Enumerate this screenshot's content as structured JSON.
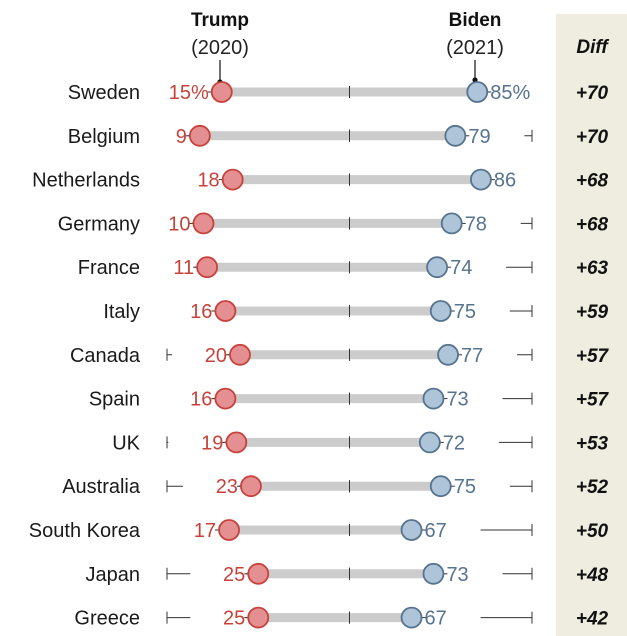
{
  "header": {
    "trump_name": "Trump",
    "trump_year": "(2020)",
    "biden_name": "Biden",
    "biden_year": "(2021)",
    "diff_label": "Diff"
  },
  "colors": {
    "trump": "#e48f91",
    "trump_stroke": "#c8423b",
    "biden": "#aec4d8",
    "biden_stroke": "#56738f",
    "bar": "#cccccc",
    "diff_panel": "#eeede0"
  },
  "chart_data": {
    "type": "dumbbell",
    "xlim": [
      0,
      100
    ],
    "series": [
      {
        "name": "Trump (2020)",
        "values": [
          15,
          9,
          18,
          10,
          11,
          16,
          20,
          16,
          19,
          23,
          17,
          25,
          25
        ]
      },
      {
        "name": "Biden (2021)",
        "values": [
          85,
          79,
          86,
          78,
          74,
          75,
          77,
          73,
          72,
          75,
          67,
          73,
          67
        ]
      }
    ],
    "rows": [
      {
        "country": "Sweden",
        "trump": 15,
        "biden": 85,
        "trump_label": "15%",
        "biden_label": "85%",
        "diff": "+70"
      },
      {
        "country": "Belgium",
        "trump": 9,
        "biden": 79,
        "trump_label": "9",
        "biden_label": "79",
        "diff": "+70"
      },
      {
        "country": "Netherlands",
        "trump": 18,
        "biden": 86,
        "trump_label": "18",
        "biden_label": "86",
        "diff": "+68"
      },
      {
        "country": "Germany",
        "trump": 10,
        "biden": 78,
        "trump_label": "10",
        "biden_label": "78",
        "diff": "+68"
      },
      {
        "country": "France",
        "trump": 11,
        "biden": 74,
        "trump_label": "11",
        "biden_label": "74",
        "diff": "+63"
      },
      {
        "country": "Italy",
        "trump": 16,
        "biden": 75,
        "trump_label": "16",
        "biden_label": "75",
        "diff": "+59"
      },
      {
        "country": "Canada",
        "trump": 20,
        "biden": 77,
        "trump_label": "20",
        "biden_label": "77",
        "diff": "+57"
      },
      {
        "country": "Spain",
        "trump": 16,
        "biden": 73,
        "trump_label": "16",
        "biden_label": "73",
        "diff": "+57"
      },
      {
        "country": "UK",
        "trump": 19,
        "biden": 72,
        "trump_label": "19",
        "biden_label": "72",
        "diff": "+53"
      },
      {
        "country": "Australia",
        "trump": 23,
        "biden": 75,
        "trump_label": "23",
        "biden_label": "75",
        "diff": "+52"
      },
      {
        "country": "South Korea",
        "trump": 17,
        "biden": 67,
        "trump_label": "17",
        "biden_label": "67",
        "diff": "+50"
      },
      {
        "country": "Japan",
        "trump": 25,
        "biden": 73,
        "trump_label": "25",
        "biden_label": "73",
        "diff": "+48"
      },
      {
        "country": "Greece",
        "trump": 25,
        "biden": 67,
        "trump_label": "25",
        "biden_label": "67",
        "diff": "+42"
      }
    ]
  }
}
